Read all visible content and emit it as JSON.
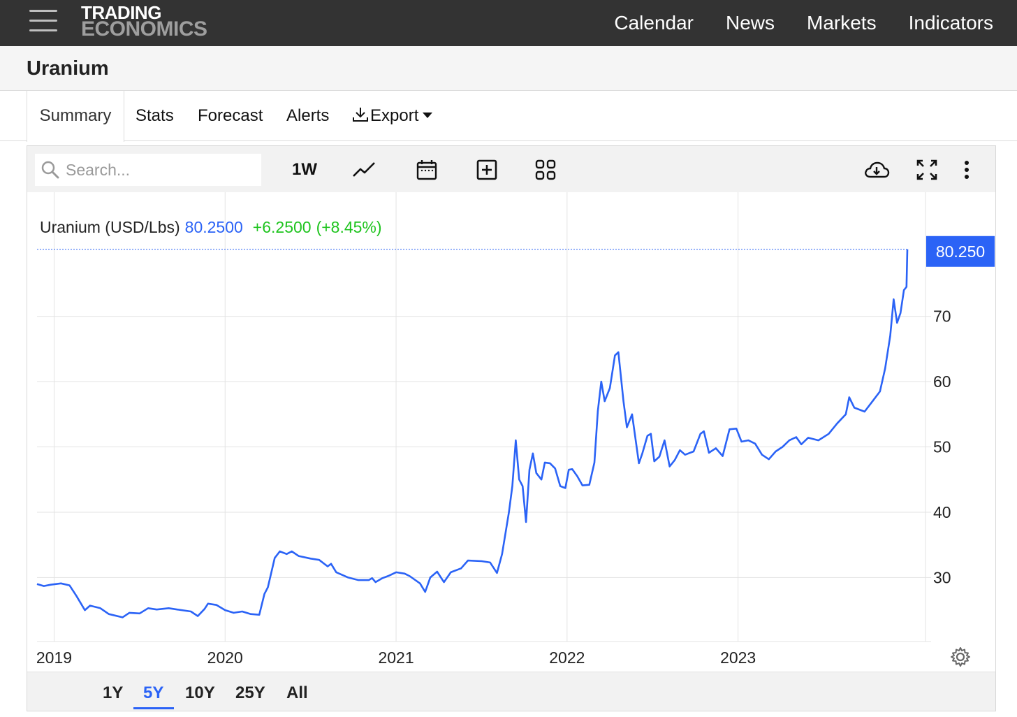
{
  "header": {
    "logo_line1": "TRADING",
    "logo_line2": "ECONOMICS",
    "nav": [
      "Calendar",
      "News",
      "Markets",
      "Indicators"
    ]
  },
  "page_title": "Uranium",
  "tabs": [
    {
      "label": "Summary",
      "active": true
    },
    {
      "label": "Stats"
    },
    {
      "label": "Forecast"
    },
    {
      "label": "Alerts"
    },
    {
      "label": "Export"
    }
  ],
  "toolbar": {
    "search_placeholder": "Search...",
    "interval_label": "1W",
    "icons": [
      "line-chart-icon",
      "calendar-icon",
      "add-square-icon",
      "grid-icon",
      "cloud-download-icon",
      "fullscreen-icon",
      "more-vertical-icon"
    ]
  },
  "ranges": [
    {
      "label": "1Y"
    },
    {
      "label": "5Y",
      "active": true
    },
    {
      "label": "10Y"
    },
    {
      "label": "25Y"
    },
    {
      "label": "All"
    }
  ],
  "colors": {
    "line": "#2b63f6",
    "change_positive": "#1ec41e",
    "last_price_box": "#2b63f6",
    "header_bg": "#333333"
  },
  "chart_data": {
    "type": "line",
    "legend_name": "Uranium (USD/Lbs)",
    "last_value": "80.2500",
    "change": "+6.2500",
    "change_pct": "(+8.45%)",
    "last_label": "80.250",
    "xlim": [
      2018.9,
      2023.99
    ],
    "ylim": [
      20.2,
      89
    ],
    "yticks": [
      30,
      40,
      50,
      60,
      70
    ],
    "xtick_labels": [
      {
        "year": 2019,
        "label": "2019"
      },
      {
        "year": 2020,
        "label": "2020"
      },
      {
        "year": 2021,
        "label": "2021"
      },
      {
        "year": 2022,
        "label": "2022"
      },
      {
        "year": 2023,
        "label": "2023"
      }
    ],
    "grid": true,
    "series": [
      {
        "points": [
          [
            2018.9,
            29.0
          ],
          [
            2018.94,
            28.7
          ],
          [
            2018.98,
            28.9
          ],
          [
            2019.04,
            29.1
          ],
          [
            2019.09,
            28.8
          ],
          [
            2019.13,
            27.2
          ],
          [
            2019.18,
            25.0
          ],
          [
            2019.21,
            25.7
          ],
          [
            2019.27,
            25.3
          ],
          [
            2019.32,
            24.4
          ],
          [
            2019.4,
            23.9
          ],
          [
            2019.44,
            24.6
          ],
          [
            2019.5,
            24.5
          ],
          [
            2019.55,
            25.3
          ],
          [
            2019.6,
            25.1
          ],
          [
            2019.67,
            25.3
          ],
          [
            2019.72,
            25.1
          ],
          [
            2019.8,
            24.8
          ],
          [
            2019.84,
            24.1
          ],
          [
            2019.88,
            25.2
          ],
          [
            2019.9,
            26.0
          ],
          [
            2019.95,
            25.8
          ],
          [
            2020.0,
            25.0
          ],
          [
            2020.05,
            24.6
          ],
          [
            2020.1,
            24.8
          ],
          [
            2020.15,
            24.4
          ],
          [
            2020.2,
            24.3
          ],
          [
            2020.23,
            27.5
          ],
          [
            2020.25,
            28.5
          ],
          [
            2020.29,
            33.0
          ],
          [
            2020.32,
            34.0
          ],
          [
            2020.36,
            33.6
          ],
          [
            2020.39,
            34.0
          ],
          [
            2020.43,
            33.3
          ],
          [
            2020.5,
            32.9
          ],
          [
            2020.55,
            32.7
          ],
          [
            2020.6,
            31.7
          ],
          [
            2020.62,
            32.1
          ],
          [
            2020.65,
            30.8
          ],
          [
            2020.72,
            30.0
          ],
          [
            2020.78,
            29.6
          ],
          [
            2020.84,
            29.6
          ],
          [
            2020.86,
            29.9
          ],
          [
            2020.88,
            29.3
          ],
          [
            2020.92,
            29.9
          ],
          [
            2020.96,
            30.3
          ],
          [
            2021.0,
            30.8
          ],
          [
            2021.05,
            30.6
          ],
          [
            2021.08,
            30.2
          ],
          [
            2021.14,
            29.1
          ],
          [
            2021.17,
            27.8
          ],
          [
            2021.2,
            30.0
          ],
          [
            2021.24,
            30.9
          ],
          [
            2021.28,
            29.3
          ],
          [
            2021.32,
            30.8
          ],
          [
            2021.38,
            31.4
          ],
          [
            2021.42,
            32.6
          ],
          [
            2021.5,
            32.5
          ],
          [
            2021.55,
            32.3
          ],
          [
            2021.59,
            30.7
          ],
          [
            2021.62,
            33.6
          ],
          [
            2021.66,
            40.0
          ],
          [
            2021.68,
            44.0
          ],
          [
            2021.7,
            51.0
          ],
          [
            2021.72,
            45.0
          ],
          [
            2021.74,
            44.0
          ],
          [
            2021.76,
            38.5
          ],
          [
            2021.78,
            46.5
          ],
          [
            2021.8,
            49.0
          ],
          [
            2021.82,
            46.0
          ],
          [
            2021.85,
            45.0
          ],
          [
            2021.87,
            47.6
          ],
          [
            2021.9,
            47.5
          ],
          [
            2021.93,
            46.7
          ],
          [
            2021.96,
            44.0
          ],
          [
            2021.99,
            43.7
          ],
          [
            2022.01,
            46.5
          ],
          [
            2022.03,
            46.6
          ],
          [
            2022.06,
            45.5
          ],
          [
            2022.09,
            44.1
          ],
          [
            2022.13,
            44.2
          ],
          [
            2022.16,
            47.6
          ],
          [
            2022.18,
            55.5
          ],
          [
            2022.2,
            60.0
          ],
          [
            2022.22,
            57.0
          ],
          [
            2022.25,
            59.0
          ],
          [
            2022.28,
            64.0
          ],
          [
            2022.3,
            64.5
          ],
          [
            2022.33,
            57.0
          ],
          [
            2022.35,
            53.0
          ],
          [
            2022.38,
            55.0
          ],
          [
            2022.42,
            47.5
          ],
          [
            2022.44,
            49.0
          ],
          [
            2022.47,
            51.7
          ],
          [
            2022.49,
            52.0
          ],
          [
            2022.51,
            47.8
          ],
          [
            2022.54,
            48.5
          ],
          [
            2022.57,
            51.0
          ],
          [
            2022.6,
            47.0
          ],
          [
            2022.63,
            48.0
          ],
          [
            2022.66,
            49.5
          ],
          [
            2022.69,
            48.8
          ],
          [
            2022.74,
            49.3
          ],
          [
            2022.78,
            52.0
          ],
          [
            2022.8,
            52.4
          ],
          [
            2022.83,
            49.1
          ],
          [
            2022.87,
            49.8
          ],
          [
            2022.91,
            48.6
          ],
          [
            2022.95,
            52.7
          ],
          [
            2022.99,
            52.8
          ],
          [
            2023.02,
            50.8
          ],
          [
            2023.06,
            51.0
          ],
          [
            2023.1,
            50.5
          ],
          [
            2023.14,
            48.8
          ],
          [
            2023.18,
            48.1
          ],
          [
            2023.22,
            49.3
          ],
          [
            2023.26,
            50.0
          ],
          [
            2023.3,
            51.0
          ],
          [
            2023.34,
            51.5
          ],
          [
            2023.37,
            50.4
          ],
          [
            2023.41,
            51.4
          ],
          [
            2023.47,
            51.0
          ],
          [
            2023.53,
            52.0
          ],
          [
            2023.58,
            53.6
          ],
          [
            2023.63,
            55.0
          ],
          [
            2023.65,
            57.6
          ],
          [
            2023.68,
            56.0
          ],
          [
            2023.74,
            55.4
          ],
          [
            2023.79,
            57.1
          ],
          [
            2023.83,
            58.5
          ],
          [
            2023.86,
            62.0
          ],
          [
            2023.89,
            67.0
          ],
          [
            2023.91,
            72.6
          ],
          [
            2023.93,
            69.0
          ],
          [
            2023.95,
            70.5
          ],
          [
            2023.97,
            74.0
          ],
          [
            2023.985,
            74.5
          ],
          [
            2023.99,
            80.25
          ]
        ]
      }
    ]
  }
}
